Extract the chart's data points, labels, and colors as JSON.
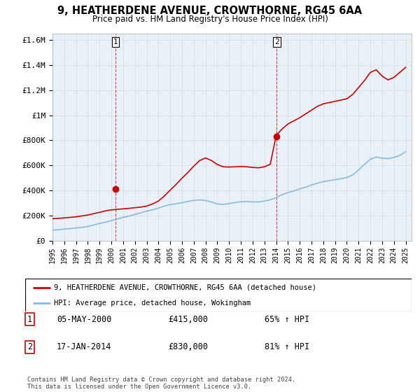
{
  "title": "9, HEATHERDENE AVENUE, CROWTHORNE, RG45 6AA",
  "subtitle": "Price paid vs. HM Land Registry's House Price Index (HPI)",
  "hpi_label": "HPI: Average price, detached house, Wokingham",
  "property_label": "9, HEATHERDENE AVENUE, CROWTHORNE, RG45 6AA (detached house)",
  "footnote": "Contains HM Land Registry data © Crown copyright and database right 2024.\nThis data is licensed under the Open Government Licence v3.0.",
  "sale1_date": "05-MAY-2000",
  "sale1_price": "£415,000",
  "sale1_hpi": "65% ↑ HPI",
  "sale2_date": "17-JAN-2014",
  "sale2_price": "£830,000",
  "sale2_hpi": "81% ↑ HPI",
  "hpi_color": "#88bbdd",
  "price_color": "#cc0000",
  "marker_color": "#cc0000",
  "grid_color": "#dddddd",
  "chart_bg": "#e8f0f8",
  "ylim": [
    0,
    1650000
  ],
  "yticks": [
    0,
    200000,
    400000,
    600000,
    800000,
    1000000,
    1200000,
    1400000,
    1600000
  ],
  "ytick_labels": [
    "£0",
    "£200K",
    "£400K",
    "£600K",
    "£800K",
    "£1M",
    "£1.2M",
    "£1.4M",
    "£1.6M"
  ],
  "xmin": 1995.5,
  "xmax": 2025.5,
  "sale1_x": 2000.35,
  "sale1_y": 415000,
  "sale2_x": 2014.04,
  "sale2_y": 830000,
  "hpi_x": [
    1995,
    1995.5,
    1996,
    1996.5,
    1997,
    1997.5,
    1998,
    1998.5,
    1999,
    1999.5,
    2000,
    2000.5,
    2001,
    2001.5,
    2002,
    2002.5,
    2003,
    2003.5,
    2004,
    2004.5,
    2005,
    2005.5,
    2006,
    2006.5,
    2007,
    2007.5,
    2008,
    2008.5,
    2009,
    2009.5,
    2010,
    2010.5,
    2011,
    2011.5,
    2012,
    2012.5,
    2013,
    2013.5,
    2014,
    2014.5,
    2015,
    2015.5,
    2016,
    2016.5,
    2017,
    2017.5,
    2018,
    2018.5,
    2019,
    2019.5,
    2020,
    2020.5,
    2021,
    2021.5,
    2022,
    2022.5,
    2023,
    2023.5,
    2024,
    2024.5,
    2025
  ],
  "hpi_y": [
    88000,
    90000,
    95000,
    99000,
    104000,
    109000,
    116000,
    128000,
    140000,
    150000,
    163000,
    175000,
    188000,
    198000,
    212000,
    225000,
    238000,
    248000,
    262000,
    278000,
    290000,
    296000,
    305000,
    315000,
    323000,
    327000,
    322000,
    310000,
    295000,
    291000,
    298000,
    306000,
    312000,
    315000,
    311000,
    311000,
    318000,
    328000,
    345000,
    368000,
    386000,
    398000,
    415000,
    428000,
    445000,
    460000,
    472000,
    480000,
    488000,
    495000,
    505000,
    525000,
    565000,
    610000,
    650000,
    668000,
    658000,
    655000,
    665000,
    680000,
    710000
  ],
  "price_x": [
    1995,
    1995.5,
    1996,
    1996.5,
    1997,
    1997.5,
    1998,
    1998.5,
    1999,
    1999.5,
    2000,
    2000.5,
    2001,
    2001.5,
    2002,
    2002.5,
    2003,
    2003.5,
    2004,
    2004.5,
    2005,
    2005.5,
    2006,
    2006.5,
    2007,
    2007.5,
    2008,
    2008.5,
    2009,
    2009.5,
    2010,
    2010.5,
    2011,
    2011.5,
    2012,
    2012.5,
    2013,
    2013.5,
    2014,
    2014.5,
    2015,
    2015.5,
    2016,
    2016.5,
    2017,
    2017.5,
    2018,
    2018.5,
    2019,
    2019.5,
    2020,
    2020.5,
    2021,
    2021.5,
    2022,
    2022.5,
    2023,
    2023.5,
    2024,
    2024.5,
    2025
  ],
  "price_y": [
    178000,
    180000,
    184000,
    188000,
    193000,
    200000,
    207000,
    218000,
    228000,
    240000,
    248000,
    252000,
    256000,
    260000,
    265000,
    270000,
    278000,
    295000,
    318000,
    358000,
    405000,
    450000,
    500000,
    545000,
    595000,
    640000,
    660000,
    640000,
    608000,
    590000,
    588000,
    590000,
    592000,
    590000,
    585000,
    582000,
    590000,
    610000,
    840000,
    890000,
    930000,
    955000,
    980000,
    1010000,
    1040000,
    1070000,
    1090000,
    1100000,
    1110000,
    1120000,
    1130000,
    1165000,
    1220000,
    1275000,
    1340000,
    1360000,
    1310000,
    1280000,
    1300000,
    1340000,
    1380000
  ]
}
